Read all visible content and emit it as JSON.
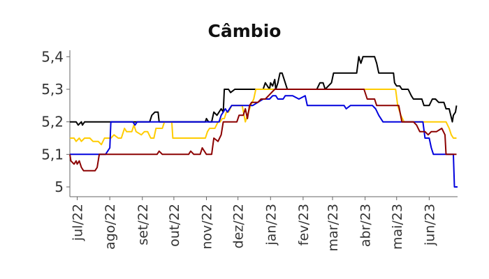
{
  "chart_data": {
    "type": "line",
    "title": "Câmbio",
    "xlabel": "",
    "ylabel": "",
    "x_range": [
      "2022-06-24",
      "2023-06-28"
    ],
    "ylim": [
      4.97,
      5.42
    ],
    "grid": false,
    "legend": "none",
    "y_ticks": [
      5.0,
      5.1,
      5.2,
      5.3,
      5.4
    ],
    "y_tick_labels": [
      "5",
      "5,1",
      "5,2",
      "5,3",
      "5,4"
    ],
    "x_ticks": [
      {
        "date": "2022-07-01",
        "label": "jul/22"
      },
      {
        "date": "2022-08-01",
        "label": "ago/22"
      },
      {
        "date": "2022-09-01",
        "label": "set/22"
      },
      {
        "date": "2022-10-01",
        "label": "out/22"
      },
      {
        "date": "2022-11-01",
        "label": "nov/22"
      },
      {
        "date": "2022-12-01",
        "label": "dez/22"
      },
      {
        "date": "2023-01-01",
        "label": "jan/23"
      },
      {
        "date": "2023-02-01",
        "label": "fev/23"
      },
      {
        "date": "2023-03-01",
        "label": "mar/23"
      },
      {
        "date": "2023-04-01",
        "label": "abr/23"
      },
      {
        "date": "2023-05-01",
        "label": "mai/23"
      },
      {
        "date": "2023-06-01",
        "label": "jun/23"
      }
    ],
    "series": [
      {
        "color": "#000000",
        "points": [
          [
            "2022-06-24",
            5.2
          ],
          [
            "2022-06-30",
            5.2
          ],
          [
            "2022-07-02",
            5.19
          ],
          [
            "2022-07-05",
            5.2
          ],
          [
            "2022-07-06",
            5.19
          ],
          [
            "2022-07-08",
            5.2
          ],
          [
            "2022-08-31",
            5.2
          ],
          [
            "2022-09-08",
            5.2
          ],
          [
            "2022-09-10",
            5.22
          ],
          [
            "2022-09-13",
            5.23
          ],
          [
            "2022-09-16",
            5.23
          ],
          [
            "2022-09-17",
            5.2
          ],
          [
            "2022-10-31",
            5.2
          ],
          [
            "2022-11-01",
            5.21
          ],
          [
            "2022-11-03",
            5.2
          ],
          [
            "2022-11-06",
            5.2
          ],
          [
            "2022-11-08",
            5.23
          ],
          [
            "2022-11-11",
            5.22
          ],
          [
            "2022-11-15",
            5.24
          ],
          [
            "2022-11-17",
            5.23
          ],
          [
            "2022-11-18",
            5.3
          ],
          [
            "2022-11-22",
            5.3
          ],
          [
            "2022-11-24",
            5.29
          ],
          [
            "2022-11-28",
            5.3
          ],
          [
            "2022-12-20",
            5.3
          ],
          [
            "2022-12-25",
            5.3
          ],
          [
            "2022-12-27",
            5.32
          ],
          [
            "2022-12-29",
            5.31
          ],
          [
            "2022-12-31",
            5.3
          ],
          [
            "2023-01-01",
            5.32
          ],
          [
            "2023-01-03",
            5.31
          ],
          [
            "2023-01-05",
            5.33
          ],
          [
            "2023-01-06",
            5.3
          ],
          [
            "2023-01-08",
            5.32
          ],
          [
            "2023-01-10",
            5.35
          ],
          [
            "2023-01-12",
            5.35
          ],
          [
            "2023-01-15",
            5.32
          ],
          [
            "2023-01-17",
            5.3
          ],
          [
            "2023-02-14",
            5.3
          ],
          [
            "2023-02-17",
            5.32
          ],
          [
            "2023-02-20",
            5.32
          ],
          [
            "2023-02-22",
            5.3
          ],
          [
            "2023-02-28",
            5.32
          ],
          [
            "2023-03-02",
            5.35
          ],
          [
            "2023-03-24",
            5.35
          ],
          [
            "2023-03-26",
            5.4
          ],
          [
            "2023-03-28",
            5.38
          ],
          [
            "2023-03-30",
            5.4
          ],
          [
            "2023-04-10",
            5.4
          ],
          [
            "2023-04-12",
            5.38
          ],
          [
            "2023-04-14",
            5.35
          ],
          [
            "2023-04-28",
            5.35
          ],
          [
            "2023-04-29",
            5.32
          ],
          [
            "2023-05-01",
            5.31
          ],
          [
            "2023-05-04",
            5.31
          ],
          [
            "2023-05-06",
            5.3
          ],
          [
            "2023-05-12",
            5.3
          ],
          [
            "2023-05-15",
            5.28
          ],
          [
            "2023-05-17",
            5.27
          ],
          [
            "2023-05-25",
            5.27
          ],
          [
            "2023-05-27",
            5.25
          ],
          [
            "2023-06-01",
            5.25
          ],
          [
            "2023-06-04",
            5.27
          ],
          [
            "2023-06-07",
            5.27
          ],
          [
            "2023-06-10",
            5.26
          ],
          [
            "2023-06-15",
            5.26
          ],
          [
            "2023-06-17",
            5.24
          ],
          [
            "2023-06-20",
            5.24
          ],
          [
            "2023-06-23",
            5.2
          ],
          [
            "2023-06-24",
            5.22
          ],
          [
            "2023-06-26",
            5.23
          ],
          [
            "2023-06-27",
            5.25
          ]
        ]
      },
      {
        "color": "#ffcc00",
        "points": [
          [
            "2022-06-24",
            5.15
          ],
          [
            "2022-06-28",
            5.15
          ],
          [
            "2022-06-30",
            5.14
          ],
          [
            "2022-07-03",
            5.15
          ],
          [
            "2022-07-05",
            5.14
          ],
          [
            "2022-07-08",
            5.15
          ],
          [
            "2022-07-13",
            5.15
          ],
          [
            "2022-07-16",
            5.14
          ],
          [
            "2022-07-21",
            5.14
          ],
          [
            "2022-07-24",
            5.13
          ],
          [
            "2022-07-27",
            5.15
          ],
          [
            "2022-08-02",
            5.15
          ],
          [
            "2022-08-05",
            5.16
          ],
          [
            "2022-08-09",
            5.15
          ],
          [
            "2022-08-12",
            5.15
          ],
          [
            "2022-08-15",
            5.18
          ],
          [
            "2022-08-17",
            5.17
          ],
          [
            "2022-08-22",
            5.17
          ],
          [
            "2022-08-24",
            5.19
          ],
          [
            "2022-08-26",
            5.17
          ],
          [
            "2022-08-31",
            5.16
          ],
          [
            "2022-09-03",
            5.17
          ],
          [
            "2022-09-06",
            5.17
          ],
          [
            "2022-09-09",
            5.15
          ],
          [
            "2022-09-12",
            5.15
          ],
          [
            "2022-09-14",
            5.18
          ],
          [
            "2022-09-20",
            5.18
          ],
          [
            "2022-09-22",
            5.2
          ],
          [
            "2022-09-29",
            5.2
          ],
          [
            "2022-09-30",
            5.15
          ],
          [
            "2022-10-28",
            5.15
          ],
          [
            "2022-10-31",
            5.15
          ],
          [
            "2022-11-02",
            5.17
          ],
          [
            "2022-11-04",
            5.18
          ],
          [
            "2022-11-09",
            5.18
          ],
          [
            "2022-11-12",
            5.2
          ],
          [
            "2022-11-14",
            5.2
          ],
          [
            "2022-11-16",
            5.21
          ],
          [
            "2022-11-18",
            5.21
          ],
          [
            "2022-11-20",
            5.23
          ],
          [
            "2022-11-22",
            5.23
          ],
          [
            "2022-11-25",
            5.25
          ],
          [
            "2022-12-05",
            5.25
          ],
          [
            "2022-12-08",
            5.2
          ],
          [
            "2022-12-10",
            5.22
          ],
          [
            "2022-12-13",
            5.25
          ],
          [
            "2022-12-16",
            5.27
          ],
          [
            "2022-12-18",
            5.3
          ],
          [
            "2023-04-30",
            5.3
          ],
          [
            "2023-05-02",
            5.25
          ],
          [
            "2023-05-05",
            5.22
          ],
          [
            "2023-05-08",
            5.2
          ],
          [
            "2023-06-17",
            5.2
          ],
          [
            "2023-06-20",
            5.18
          ],
          [
            "2023-06-22",
            5.16
          ],
          [
            "2023-06-24",
            5.15
          ],
          [
            "2023-06-27",
            5.15
          ]
        ]
      },
      {
        "color": "#0000dd",
        "points": [
          [
            "2022-06-24",
            5.1
          ],
          [
            "2022-07-28",
            5.1
          ],
          [
            "2022-07-30",
            5.11
          ],
          [
            "2022-08-01",
            5.12
          ],
          [
            "2022-08-02",
            5.2
          ],
          [
            "2022-08-23",
            5.2
          ],
          [
            "2022-08-25",
            5.19
          ],
          [
            "2022-08-27",
            5.2
          ],
          [
            "2022-11-05",
            5.2
          ],
          [
            "2022-11-13",
            5.2
          ],
          [
            "2022-11-15",
            5.22
          ],
          [
            "2022-11-19",
            5.24
          ],
          [
            "2022-11-21",
            5.23
          ],
          [
            "2022-11-25",
            5.25
          ],
          [
            "2022-12-15",
            5.25
          ],
          [
            "2022-12-20",
            5.26
          ],
          [
            "2022-12-25",
            5.27
          ],
          [
            "2022-12-31",
            5.27
          ],
          [
            "2023-01-03",
            5.28
          ],
          [
            "2023-01-06",
            5.28
          ],
          [
            "2023-01-08",
            5.27
          ],
          [
            "2023-01-13",
            5.27
          ],
          [
            "2023-01-15",
            5.28
          ],
          [
            "2023-01-22",
            5.28
          ],
          [
            "2023-01-28",
            5.27
          ],
          [
            "2023-02-03",
            5.28
          ],
          [
            "2023-02-05",
            5.25
          ],
          [
            "2023-03-12",
            5.25
          ],
          [
            "2023-03-14",
            5.24
          ],
          [
            "2023-03-18",
            5.25
          ],
          [
            "2023-04-08",
            5.25
          ],
          [
            "2023-04-11",
            5.24
          ],
          [
            "2023-04-14",
            5.22
          ],
          [
            "2023-04-18",
            5.2
          ],
          [
            "2023-05-26",
            5.2
          ],
          [
            "2023-05-28",
            5.15
          ],
          [
            "2023-06-01",
            5.15
          ],
          [
            "2023-06-03",
            5.12
          ],
          [
            "2023-06-05",
            5.1
          ],
          [
            "2023-06-24",
            5.1
          ],
          [
            "2023-06-25",
            5.0
          ],
          [
            "2023-06-28",
            5.0
          ]
        ]
      },
      {
        "color": "#8b0000",
        "points": [
          [
            "2022-06-24",
            5.1
          ],
          [
            "2022-06-25",
            5.08
          ],
          [
            "2022-06-28",
            5.07
          ],
          [
            "2022-06-30",
            5.08
          ],
          [
            "2022-07-01",
            5.07
          ],
          [
            "2022-07-03",
            5.08
          ],
          [
            "2022-07-05",
            5.06
          ],
          [
            "2022-07-07",
            5.05
          ],
          [
            "2022-07-14",
            5.05
          ],
          [
            "2022-07-18",
            5.05
          ],
          [
            "2022-07-20",
            5.06
          ],
          [
            "2022-07-22",
            5.1
          ],
          [
            "2022-09-15",
            5.1
          ],
          [
            "2022-09-17",
            5.11
          ],
          [
            "2022-09-20",
            5.1
          ],
          [
            "2022-10-15",
            5.1
          ],
          [
            "2022-10-17",
            5.11
          ],
          [
            "2022-10-20",
            5.1
          ],
          [
            "2022-10-26",
            5.1
          ],
          [
            "2022-10-28",
            5.12
          ],
          [
            "2022-11-01",
            5.1
          ],
          [
            "2022-11-06",
            5.1
          ],
          [
            "2022-11-08",
            5.15
          ],
          [
            "2022-11-12",
            5.14
          ],
          [
            "2022-11-15",
            5.16
          ],
          [
            "2022-11-17",
            5.2
          ],
          [
            "2022-11-30",
            5.2
          ],
          [
            "2022-12-02",
            5.22
          ],
          [
            "2022-12-06",
            5.22
          ],
          [
            "2022-12-08",
            5.24
          ],
          [
            "2022-12-10",
            5.21
          ],
          [
            "2022-12-12",
            5.25
          ],
          [
            "2022-12-14",
            5.26
          ],
          [
            "2022-12-20",
            5.26
          ],
          [
            "2022-12-23",
            5.27
          ],
          [
            "2022-12-27",
            5.27
          ],
          [
            "2022-12-30",
            5.28
          ],
          [
            "2023-01-05",
            5.3
          ],
          [
            "2023-03-31",
            5.3
          ],
          [
            "2023-04-03",
            5.27
          ],
          [
            "2023-04-10",
            5.27
          ],
          [
            "2023-04-12",
            5.25
          ],
          [
            "2023-05-03",
            5.25
          ],
          [
            "2023-05-06",
            5.2
          ],
          [
            "2023-05-17",
            5.2
          ],
          [
            "2023-05-20",
            5.19
          ],
          [
            "2023-05-23",
            5.17
          ],
          [
            "2023-05-28",
            5.17
          ],
          [
            "2023-05-31",
            5.16
          ],
          [
            "2023-06-03",
            5.17
          ],
          [
            "2023-06-08",
            5.17
          ],
          [
            "2023-06-13",
            5.18
          ],
          [
            "2023-06-16",
            5.16
          ],
          [
            "2023-06-17",
            5.1
          ],
          [
            "2023-06-27",
            5.1
          ]
        ]
      }
    ]
  }
}
